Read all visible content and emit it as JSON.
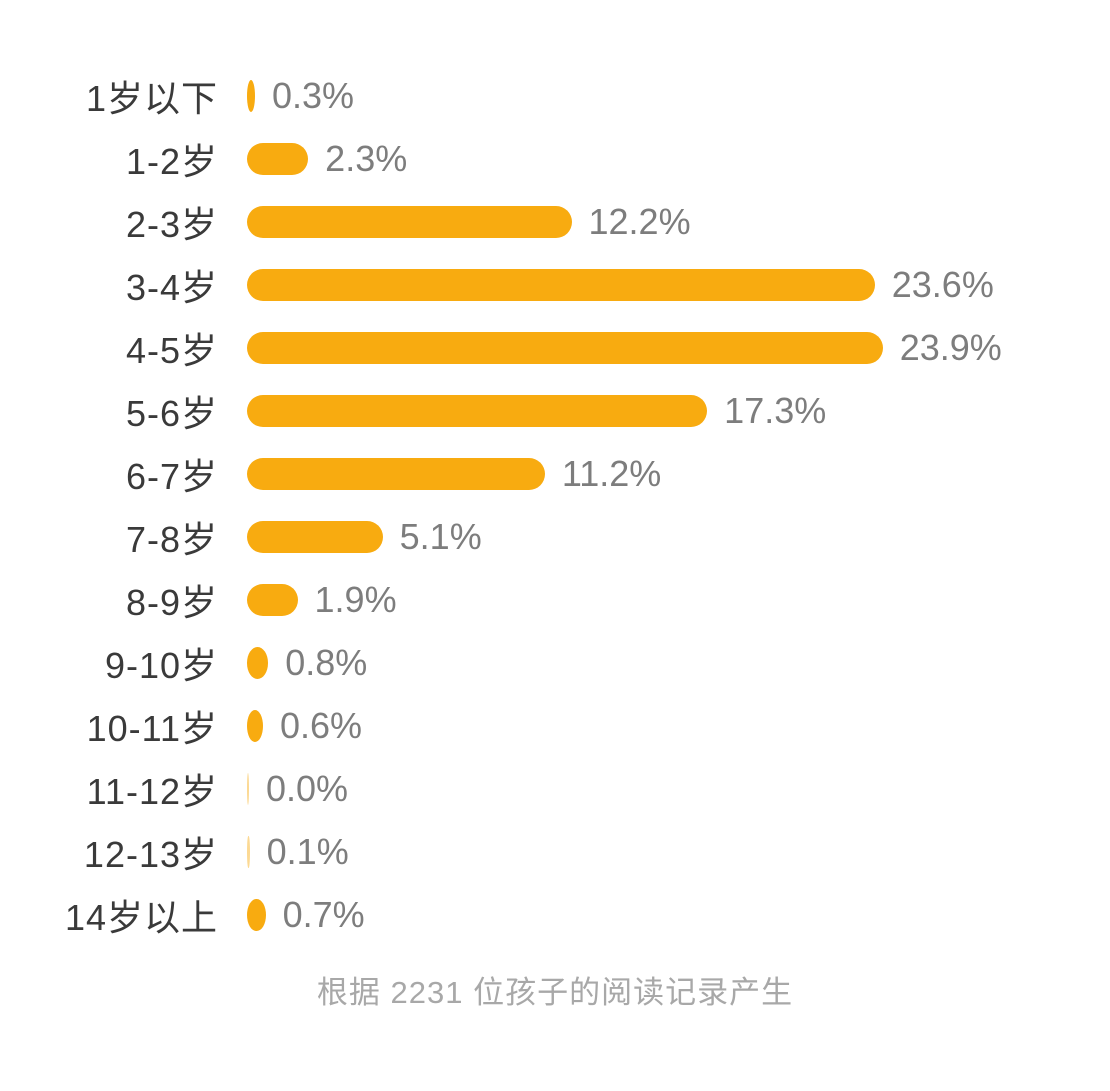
{
  "chart_data": {
    "type": "bar",
    "orientation": "horizontal",
    "title": "",
    "xlabel": "",
    "ylabel": "",
    "xlim": [
      0,
      24
    ],
    "grid": false,
    "legend": "none",
    "bar_color": "#F8AB10",
    "categories": [
      "1岁以下",
      "1-2岁",
      "2-3岁",
      "3-4岁",
      "4-5岁",
      "5-6岁",
      "6-7岁",
      "7-8岁",
      "8-9岁",
      "9-10岁",
      "10-11岁",
      "11-12岁",
      "12-13岁",
      "14岁以上"
    ],
    "values": [
      0.3,
      2.3,
      12.2,
      23.6,
      23.9,
      17.3,
      11.2,
      5.1,
      1.9,
      0.8,
      0.6,
      0.0,
      0.1,
      0.7
    ],
    "value_labels": [
      "0.3%",
      "2.3%",
      "12.2%",
      "23.6%",
      "23.9%",
      "17.3%",
      "11.2%",
      "5.1%",
      "1.9%",
      "0.8%",
      "0.6%",
      "0.0%",
      "0.1%",
      "0.7%"
    ],
    "footnote": "根据 2231 位孩子的阅读记录产生"
  },
  "colors": {
    "bar": "#F8AB10",
    "category_label": "#3A3A3A",
    "value_label": "#7D7D7D",
    "footnote": "#A8A8A8",
    "background": "#FFFFFF"
  }
}
